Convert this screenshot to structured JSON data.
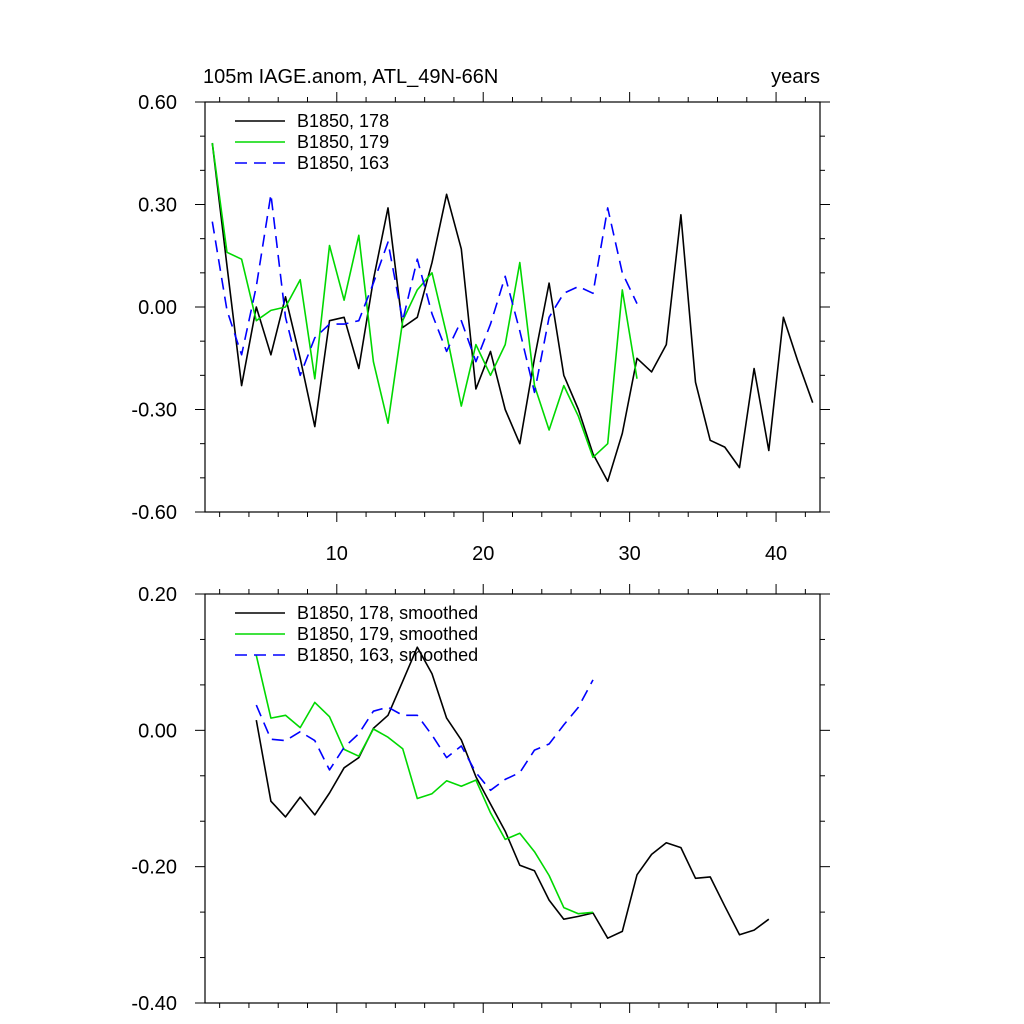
{
  "chart_data": [
    {
      "type": "line",
      "title": "105m IAGE.anom, ATL_49N-66N",
      "units": "years",
      "xlim": [
        1,
        43
      ],
      "ylim": [
        -0.6,
        0.6
      ],
      "x_ticks": [
        10,
        20,
        30,
        40
      ],
      "x_tick_labels": [
        "10",
        "20",
        "30",
        "40"
      ],
      "y_ticks": [
        0.6,
        0.3,
        0.0,
        -0.3,
        -0.6
      ],
      "y_tick_labels": [
        "0.60",
        "0.30",
        "0.00",
        "-0.30",
        "-0.60"
      ],
      "legend_position": "top-left",
      "series": [
        {
          "name": "B1850, 178",
          "color": "#000000",
          "dash": "solid",
          "x": [
            1.5,
            2.5,
            3.5,
            4.5,
            5.5,
            6.5,
            7.5,
            8.5,
            9.5,
            10.5,
            11.5,
            12.5,
            13.5,
            14.5,
            15.5,
            16.5,
            17.5,
            18.5,
            19.5,
            20.5,
            21.5,
            22.5,
            23.5,
            24.5,
            25.5,
            26.5,
            27.5,
            28.5,
            29.5,
            30.5,
            31.5,
            32.5,
            33.5,
            34.5,
            35.5,
            36.5,
            37.5,
            38.5,
            39.5,
            40.5,
            41.5,
            42.5
          ],
          "values": [
            0.48,
            0.12,
            -0.23,
            0.0,
            -0.14,
            0.03,
            -0.15,
            -0.35,
            -0.04,
            -0.03,
            -0.18,
            0.08,
            0.29,
            -0.06,
            -0.03,
            0.13,
            0.33,
            0.17,
            -0.24,
            -0.13,
            -0.3,
            -0.4,
            -0.15,
            0.07,
            -0.2,
            -0.3,
            -0.43,
            -0.51,
            -0.37,
            -0.15,
            -0.19,
            -0.11,
            0.27,
            -0.22,
            -0.39,
            -0.41,
            -0.47,
            -0.18,
            -0.42,
            -0.03,
            -0.16,
            -0.28
          ]
        },
        {
          "name": "B1850, 179",
          "color": "#00d800",
          "dash": "solid",
          "x": [
            1.5,
            2.5,
            3.5,
            4.5,
            5.5,
            6.5,
            7.5,
            8.5,
            9.5,
            10.5,
            11.5,
            12.5,
            13.5,
            14.5,
            15.5,
            16.5,
            17.5,
            18.5,
            19.5,
            20.5,
            21.5,
            22.5,
            23.5,
            24.5,
            25.5,
            26.5,
            27.5,
            28.5,
            29.5,
            30.5
          ],
          "values": [
            0.48,
            0.16,
            0.14,
            -0.04,
            -0.01,
            0.0,
            0.08,
            -0.21,
            0.18,
            0.02,
            0.21,
            -0.16,
            -0.34,
            -0.04,
            0.05,
            0.1,
            -0.08,
            -0.29,
            -0.11,
            -0.2,
            -0.11,
            0.13,
            -0.23,
            -0.36,
            -0.23,
            -0.32,
            -0.44,
            -0.4,
            0.05,
            -0.21
          ]
        },
        {
          "name": "B1850, 163",
          "color": "#0000ff",
          "dash": "dashed",
          "x": [
            1.5,
            2.5,
            3.5,
            4.5,
            5.5,
            6.5,
            7.5,
            8.5,
            9.5,
            10.5,
            11.5,
            12.5,
            13.5,
            14.5,
            15.5,
            16.5,
            17.5,
            18.5,
            19.5,
            20.5,
            21.5,
            22.5,
            23.5,
            24.5,
            25.5,
            26.5,
            27.5,
            28.5,
            29.5,
            30.5
          ],
          "values": [
            0.25,
            -0.01,
            -0.14,
            0.06,
            0.33,
            -0.03,
            -0.2,
            -0.09,
            -0.05,
            -0.05,
            -0.04,
            0.07,
            0.19,
            -0.04,
            0.14,
            -0.02,
            -0.13,
            -0.04,
            -0.16,
            -0.05,
            0.09,
            -0.07,
            -0.25,
            -0.03,
            0.04,
            0.06,
            0.04,
            0.29,
            0.1,
            0.01
          ]
        }
      ]
    },
    {
      "type": "line",
      "title": "",
      "xlim": [
        1,
        43
      ],
      "ylim": [
        -0.4,
        0.2
      ],
      "x_ticks": [
        10,
        20,
        30,
        40
      ],
      "x_tick_labels": [],
      "y_ticks": [
        0.2,
        0.0,
        -0.2,
        -0.4
      ],
      "y_tick_labels": [
        "0.20",
        "0.00",
        "-0.20",
        "-0.40"
      ],
      "legend_position": "top-left",
      "series": [
        {
          "name": "B1850, 178, smoothed",
          "color": "#000000",
          "dash": "solid",
          "x": [
            4.5,
            5.5,
            6.5,
            7.5,
            8.5,
            9.5,
            10.5,
            11.5,
            12.5,
            13.5,
            14.5,
            15.5,
            16.5,
            17.5,
            18.5,
            19.5,
            20.5,
            21.5,
            22.5,
            23.5,
            24.5,
            25.5,
            26.5,
            27.5,
            28.5,
            29.5,
            30.5,
            31.5,
            32.5,
            33.5,
            34.5,
            35.5,
            36.5,
            37.5,
            38.5,
            39.5
          ],
          "values": [
            0.015,
            -0.104,
            -0.127,
            -0.098,
            -0.124,
            -0.092,
            -0.055,
            -0.04,
            0.003,
            0.022,
            0.072,
            0.122,
            0.083,
            0.018,
            -0.014,
            -0.068,
            -0.108,
            -0.148,
            -0.198,
            -0.206,
            -0.249,
            -0.277,
            -0.273,
            -0.268,
            -0.305,
            -0.295,
            -0.212,
            -0.182,
            -0.165,
            -0.172,
            -0.217,
            -0.215,
            -0.258,
            -0.3,
            -0.293,
            -0.277
          ]
        },
        {
          "name": "B1850, 179, smoothed",
          "color": "#00d800",
          "dash": "solid",
          "x": [
            4.5,
            5.5,
            6.5,
            7.5,
            8.5,
            9.5,
            10.5,
            11.5,
            12.5,
            13.5,
            14.5,
            15.5,
            16.5,
            17.5,
            18.5,
            19.5,
            20.5,
            21.5,
            22.5,
            23.5,
            24.5,
            25.5,
            26.5,
            27.5
          ],
          "values": [
            0.11,
            0.018,
            0.022,
            0.004,
            0.041,
            0.02,
            -0.028,
            -0.038,
            0.002,
            -0.01,
            -0.027,
            -0.1,
            -0.093,
            -0.074,
            -0.082,
            -0.073,
            -0.121,
            -0.16,
            -0.151,
            -0.178,
            -0.213,
            -0.26,
            -0.269,
            -0.267
          ]
        },
        {
          "name": "B1850, 163, smoothed",
          "color": "#0000ff",
          "dash": "dashed",
          "x": [
            4.5,
            5.5,
            6.5,
            7.5,
            8.5,
            9.5,
            10.5,
            11.5,
            12.5,
            13.5,
            14.5,
            15.5,
            16.5,
            17.5,
            18.5,
            19.5,
            20.5,
            21.5,
            22.5,
            23.5,
            24.5,
            25.5,
            26.5,
            27.5
          ],
          "values": [
            0.037,
            -0.013,
            -0.015,
            -0.002,
            -0.015,
            -0.058,
            -0.025,
            -0.005,
            0.028,
            0.034,
            0.022,
            0.022,
            -0.007,
            -0.04,
            -0.023,
            -0.062,
            -0.088,
            -0.072,
            -0.062,
            -0.029,
            -0.02,
            0.008,
            0.034,
            0.074
          ]
        }
      ]
    }
  ]
}
